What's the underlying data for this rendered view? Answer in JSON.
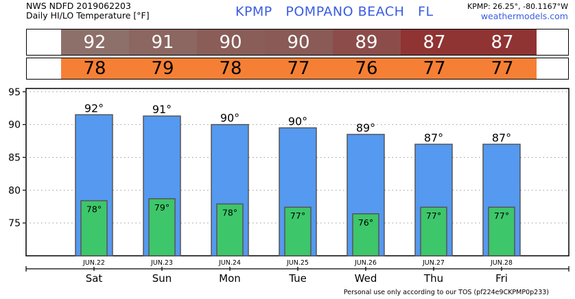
{
  "header": {
    "source_line": "NWS NDFD 2019062203",
    "subtitle": "Daily HI/LO Temperature [°F]",
    "station_title": "KPMP   POMPANO BEACH   FL",
    "coords": "KPMP: 26.25°, -80.1167°W",
    "site": "weathermodels.com"
  },
  "hi_row": {
    "values": [
      "92",
      "91",
      "90",
      "90",
      "89",
      "87",
      "87"
    ],
    "colors": [
      "#8e706a",
      "#8c6661",
      "#8a5d58",
      "#895a56",
      "#8c4d4a",
      "#8f3433",
      "#8f3433"
    ]
  },
  "lo_row": {
    "values": [
      "78",
      "79",
      "78",
      "77",
      "76",
      "77",
      "77"
    ],
    "color": "#f57f35"
  },
  "chart_data": {
    "type": "bar",
    "categories": [
      "Sat",
      "Sun",
      "Mon",
      "Tue",
      "Wed",
      "Thu",
      "Fri"
    ],
    "dates": [
      "JUN.22",
      "JUN.23",
      "JUN.24",
      "JUN.25",
      "JUN.26",
      "JUN.27",
      "JUN.28"
    ],
    "series": [
      {
        "values": [
          91.5,
          91.3,
          90.0,
          89.5,
          88.5,
          87.0,
          87.0
        ],
        "labels": [
          "92°",
          "91°",
          "90°",
          "90°",
          "89°",
          "87°",
          "87°"
        ],
        "color": "#5599f0"
      },
      {
        "values": [
          78.4,
          78.7,
          77.9,
          77.4,
          76.4,
          77.4,
          77.4
        ],
        "labels": [
          "78°",
          "79°",
          "78°",
          "77°",
          "76°",
          "77°",
          "77°"
        ],
        "color": "#3ec66a"
      }
    ],
    "ylim": [
      70,
      95.5
    ],
    "yticks": [
      75,
      80,
      85,
      90,
      95
    ],
    "grid": true,
    "border_color": "#000000"
  },
  "footer": "Personal use only according to our TOS (pf224e9CKPMP0p233)"
}
